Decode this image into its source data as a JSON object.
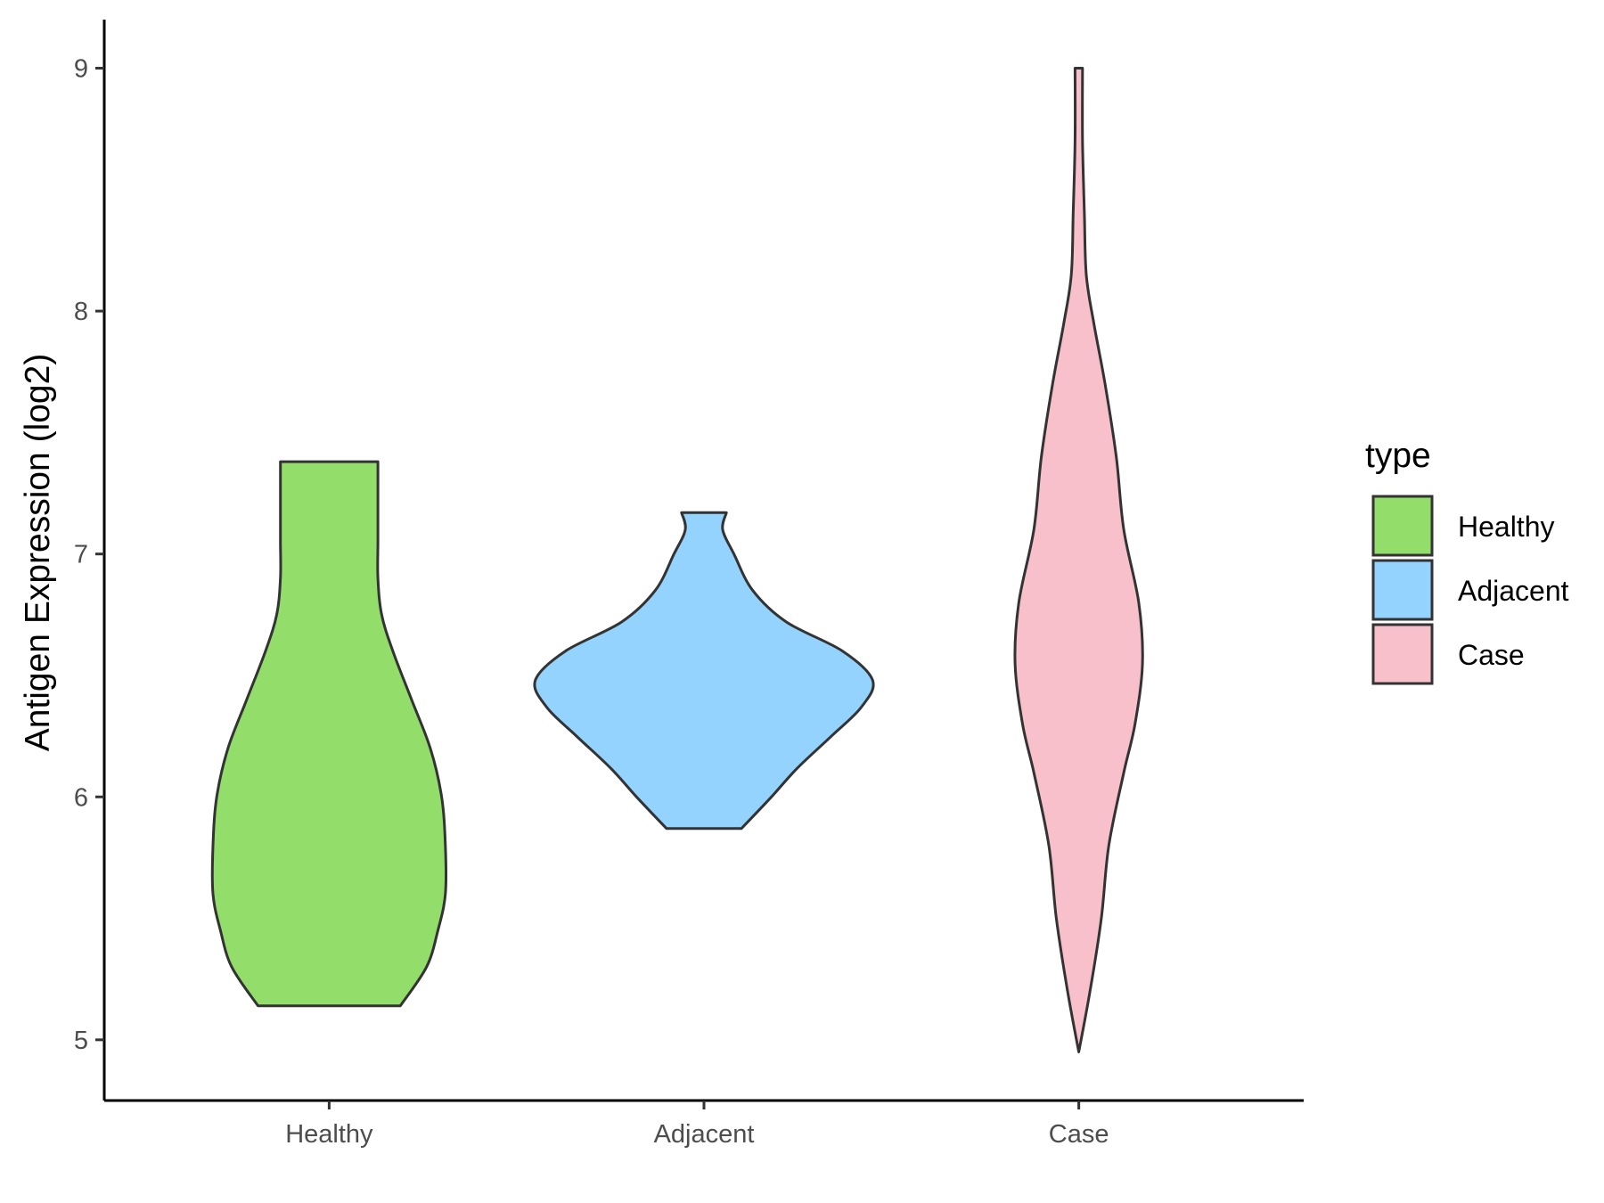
{
  "chart_data": {
    "type": "violin",
    "categories": [
      "Healthy",
      "Adjacent",
      "Case"
    ],
    "ylabel": "Antigen Expression (log2)",
    "xlabel": "",
    "ylim": [
      4.75,
      9.2
    ],
    "yticks": [
      5,
      6,
      7,
      8,
      9
    ],
    "legend": {
      "title": "type",
      "placement": "right",
      "entries": [
        "Healthy",
        "Adjacent",
        "Case"
      ]
    },
    "colors": {
      "Healthy": "#93dd6a",
      "Adjacent": "#93d3fe",
      "Case": "#f8c0cb",
      "outline": "#333333"
    },
    "series": [
      {
        "name": "Healthy",
        "min": 5.14,
        "max": 7.38,
        "density": [
          [
            5.14,
            0.19
          ],
          [
            5.3,
            0.26
          ],
          [
            5.45,
            0.29
          ],
          [
            5.6,
            0.31
          ],
          [
            5.8,
            0.31
          ],
          [
            6.0,
            0.3
          ],
          [
            6.2,
            0.27
          ],
          [
            6.4,
            0.22
          ],
          [
            6.6,
            0.17
          ],
          [
            6.75,
            0.14
          ],
          [
            6.9,
            0.13
          ],
          [
            7.05,
            0.13
          ],
          [
            7.2,
            0.13
          ],
          [
            7.38,
            0.13
          ]
        ]
      },
      {
        "name": "Adjacent",
        "min": 5.87,
        "max": 7.17,
        "density": [
          [
            5.87,
            0.1
          ],
          [
            6.0,
            0.18
          ],
          [
            6.12,
            0.25
          ],
          [
            6.25,
            0.34
          ],
          [
            6.37,
            0.42
          ],
          [
            6.48,
            0.45
          ],
          [
            6.6,
            0.37
          ],
          [
            6.72,
            0.22
          ],
          [
            6.85,
            0.13
          ],
          [
            7.0,
            0.08
          ],
          [
            7.1,
            0.05
          ],
          [
            7.17,
            0.06
          ]
        ]
      },
      {
        "name": "Case",
        "min": 4.95,
        "max": 9.0,
        "density": [
          [
            4.95,
            0.0
          ],
          [
            5.2,
            0.03
          ],
          [
            5.5,
            0.06
          ],
          [
            5.8,
            0.08
          ],
          [
            6.1,
            0.12
          ],
          [
            6.3,
            0.15
          ],
          [
            6.55,
            0.17
          ],
          [
            6.8,
            0.16
          ],
          [
            7.1,
            0.12
          ],
          [
            7.4,
            0.1
          ],
          [
            7.7,
            0.07
          ],
          [
            7.95,
            0.04
          ],
          [
            8.15,
            0.02
          ],
          [
            8.4,
            0.015
          ],
          [
            8.7,
            0.01
          ],
          [
            9.0,
            0.01
          ]
        ]
      }
    ]
  }
}
